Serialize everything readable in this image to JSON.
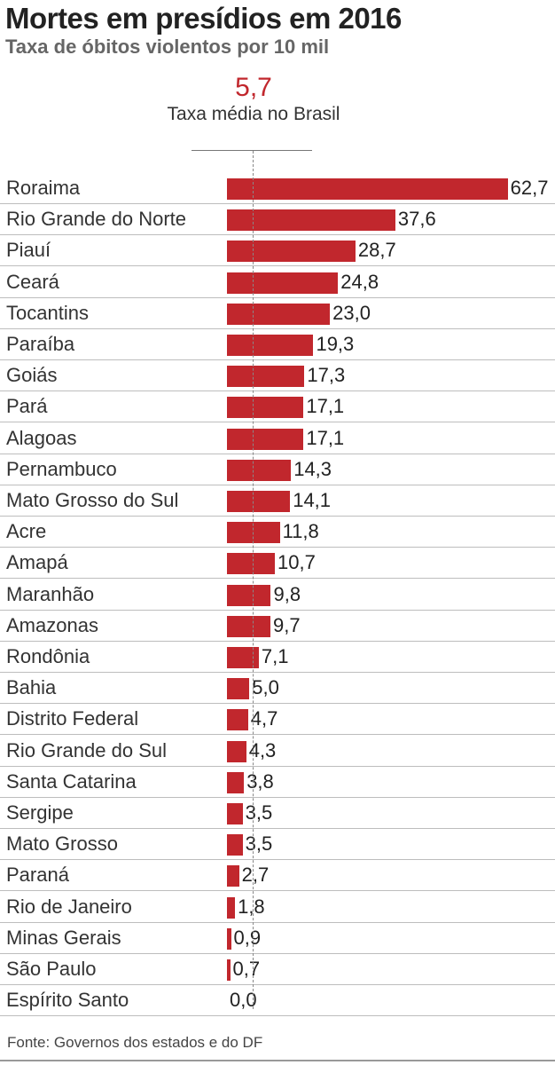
{
  "chart_data": {
    "type": "bar",
    "orientation": "horizontal",
    "title": "Mortes em presídios em 2016",
    "subtitle": "Taxa de óbitos violentos por 10 mil",
    "reference_line": {
      "value_label": "5,7",
      "value": 5.7,
      "label": "Taxa média no Brasil"
    },
    "categories": [
      "Roraima",
      "Rio Grande do Norte",
      "Piauí",
      "Ceará",
      "Tocantins",
      "Paraíba",
      "Goiás",
      "Pará",
      "Alagoas",
      "Pernambuco",
      "Mato Grosso do Sul",
      "Acre",
      "Amapá",
      "Maranhão",
      "Amazonas",
      "Rondônia",
      "Bahia",
      "Distrito Federal",
      "Rio Grande do Sul",
      "Santa Catarina",
      "Sergipe",
      "Mato Grosso",
      "Paraná",
      "Rio de Janeiro",
      "Minas Gerais",
      "São Paulo",
      "Espírito Santo"
    ],
    "values": [
      62.7,
      37.6,
      28.7,
      24.8,
      23.0,
      19.3,
      17.3,
      17.1,
      17.1,
      14.3,
      14.1,
      11.8,
      10.7,
      9.8,
      9.7,
      7.1,
      5.0,
      4.7,
      4.3,
      3.8,
      3.5,
      3.5,
      2.7,
      1.8,
      0.9,
      0.7,
      0.0
    ],
    "value_labels": [
      "62,7",
      "37,6",
      "28,7",
      "24,8",
      "23,0",
      "19,3",
      "17,3",
      "17,1",
      "17,1",
      "14,3",
      "14,1",
      "11,8",
      "10,7",
      "9,8",
      "9,7",
      "7,1",
      "5,0",
      "4,7",
      "4,3",
      "3,8",
      "3,5",
      "3,5",
      "2,7",
      "1,8",
      "0,9",
      "0,7",
      "0,0"
    ],
    "bar_color": "#c1272d",
    "source": "Fonte: Governos dos estados e do DF"
  }
}
